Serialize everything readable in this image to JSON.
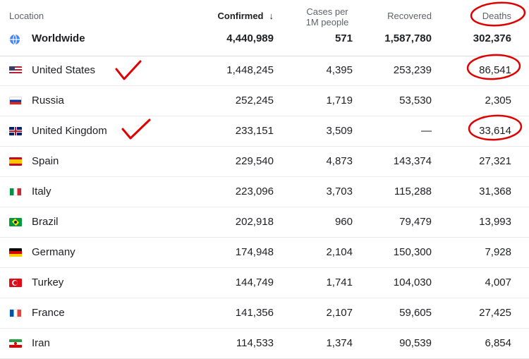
{
  "header": {
    "location": "Location",
    "confirmed": "Confirmed",
    "cases_per_1m_line1": "Cases per",
    "cases_per_1m_line2": "1M people",
    "recovered": "Recovered",
    "deaths": "Deaths",
    "sort_arrow": "↓"
  },
  "worldwide": {
    "location": "Worldwide",
    "confirmed": "4,440,989",
    "per_1m": "571",
    "recovered": "1,587,780",
    "deaths": "302,376"
  },
  "rows": [
    {
      "location": "United States",
      "flag": "us",
      "confirmed": "1,448,245",
      "per_1m": "4,395",
      "recovered": "253,239",
      "deaths": "86,541"
    },
    {
      "location": "Russia",
      "flag": "ru",
      "confirmed": "252,245",
      "per_1m": "1,719",
      "recovered": "53,530",
      "deaths": "2,305"
    },
    {
      "location": "United Kingdom",
      "flag": "uk",
      "confirmed": "233,151",
      "per_1m": "3,509",
      "recovered": "—",
      "deaths": "33,614"
    },
    {
      "location": "Spain",
      "flag": "es",
      "confirmed": "229,540",
      "per_1m": "4,873",
      "recovered": "143,374",
      "deaths": "27,321"
    },
    {
      "location": "Italy",
      "flag": "it",
      "confirmed": "223,096",
      "per_1m": "3,703",
      "recovered": "115,288",
      "deaths": "31,368"
    },
    {
      "location": "Brazil",
      "flag": "br",
      "confirmed": "202,918",
      "per_1m": "960",
      "recovered": "79,479",
      "deaths": "13,993"
    },
    {
      "location": "Germany",
      "flag": "de",
      "confirmed": "174,948",
      "per_1m": "2,104",
      "recovered": "150,300",
      "deaths": "7,928"
    },
    {
      "location": "Turkey",
      "flag": "tr",
      "confirmed": "144,749",
      "per_1m": "1,741",
      "recovered": "104,030",
      "deaths": "4,007"
    },
    {
      "location": "France",
      "flag": "fr",
      "confirmed": "141,356",
      "per_1m": "2,107",
      "recovered": "59,605",
      "deaths": "27,425"
    },
    {
      "location": "Iran",
      "flag": "ir",
      "confirmed": "114,533",
      "per_1m": "1,374",
      "recovered": "90,539",
      "deaths": "6,854"
    }
  ],
  "colors": {
    "annotation_red": "#e00000",
    "header_text": "#5f6368",
    "body_text": "#202124",
    "divider": "#dadce0"
  },
  "icons": {
    "worldwide": "globe-icon",
    "sort": "arrow-down-icon"
  }
}
